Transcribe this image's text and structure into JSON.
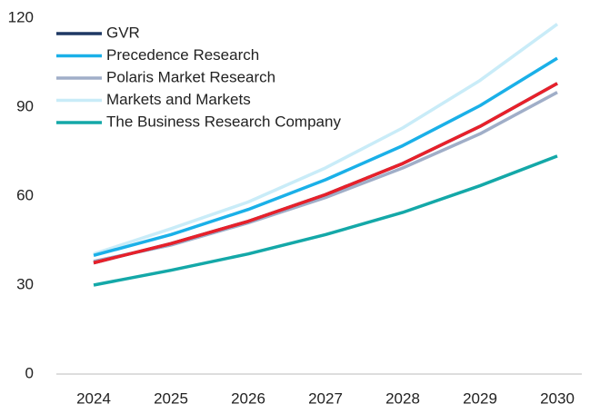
{
  "chart_data": {
    "type": "line",
    "categories": [
      "2024",
      "2025",
      "2026",
      "2027",
      "2028",
      "2029",
      "2030"
    ],
    "series": [
      {
        "name": "Markets and Markets",
        "color": "#c9ecf8",
        "values": [
          40.5,
          49,
          58,
          69.5,
          83,
          99,
          118
        ]
      },
      {
        "name": "Precedence Research",
        "color": "#1ab0e8",
        "values": [
          40,
          47,
          55.5,
          65.5,
          77,
          90.5,
          106.5
        ]
      },
      {
        "name": "Polaris Market Research",
        "color": "#a0aec8",
        "values": [
          38,
          43.5,
          51,
          59.5,
          69.5,
          81,
          95
        ]
      },
      {
        "name": "The Business Research Company",
        "color": "#14a8a8",
        "values": [
          30,
          35,
          40.5,
          47,
          54.5,
          63.5,
          73.5
        ]
      },
      {
        "name": "GVR",
        "color": "#1f3864",
        "values": [
          37.5,
          44,
          51.5,
          60.5,
          71,
          83.5,
          98
        ]
      },
      {
        "color": "#e8202a",
        "values": [
          37.5,
          44,
          51.5,
          60.5,
          71,
          83.5,
          98
        ]
      }
    ],
    "legend_order": [
      "GVR",
      "Precedence Research",
      "Polaris Market Research",
      "Markets and Markets",
      "The Business Research Company"
    ],
    "ylim": [
      0,
      120
    ],
    "yticks": [
      0,
      30,
      60,
      90,
      120
    ],
    "grid": false,
    "legend": "upper left"
  }
}
